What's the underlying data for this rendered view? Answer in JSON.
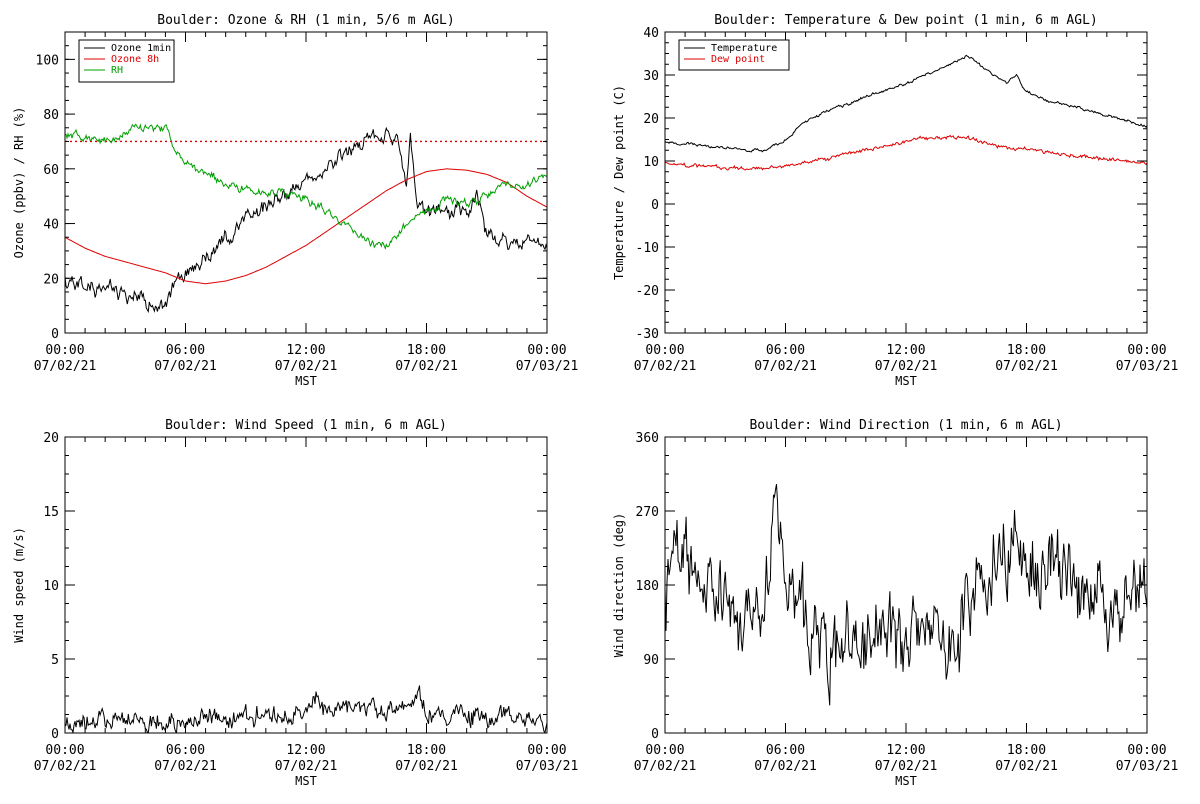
{
  "chart_data": [
    {
      "id": "ozone_rh",
      "type": "line",
      "title": "Boulder: Ozone & RH (1 min, 5/6 m AGL)",
      "xlabel": "MST",
      "ylabel": "Ozone (ppbv) / RH (%)",
      "x_range": [
        "07/02/21 00:00",
        "07/03/21 00:00"
      ],
      "x_ticks": [
        {
          "time": "00:00",
          "date": "07/02/21"
        },
        {
          "time": "06:00",
          "date": "07/02/21"
        },
        {
          "time": "12:00",
          "date": "07/02/21"
        },
        {
          "time": "18:00",
          "date": "07/02/21"
        },
        {
          "time": "00:00",
          "date": "07/03/21"
        }
      ],
      "ylim": [
        0,
        110
      ],
      "y_ticks": [
        0,
        20,
        40,
        60,
        80,
        100
      ],
      "reference_line": {
        "value": 70,
        "color": "#dd0000",
        "style": "dotted"
      },
      "legend": {
        "position": "top-left"
      },
      "series": [
        {
          "name": "Ozone 1min",
          "color": "#000000",
          "noise": 2.5,
          "seed": 11,
          "x_hours": [
            0,
            1,
            2,
            3,
            4,
            5,
            5.5,
            6,
            7,
            8,
            9,
            10,
            11,
            12,
            13,
            14,
            15,
            16,
            16.5,
            17,
            17.2,
            17.5,
            18,
            18.5,
            19,
            20,
            20.5,
            21,
            22,
            23,
            24
          ],
          "values": [
            18,
            17,
            16,
            14,
            11,
            10,
            18,
            22,
            27,
            36,
            42,
            46,
            50,
            54,
            60,
            67,
            70,
            73,
            72,
            56,
            70,
            48,
            44,
            45,
            44,
            45,
            50,
            36,
            32,
            34,
            32
          ]
        },
        {
          "name": "Ozone 8h",
          "color": "#dd0000",
          "noise": 0,
          "seed": 3,
          "x_hours": [
            0,
            1,
            2,
            3,
            4,
            5,
            6,
            7,
            8,
            9,
            10,
            11,
            12,
            13,
            14,
            15,
            16,
            17,
            18,
            19,
            20,
            21,
            22,
            23,
            24
          ],
          "values": [
            35,
            31,
            28,
            26,
            24,
            22,
            19,
            18,
            19,
            21,
            24,
            28,
            32,
            37,
            42,
            47,
            52,
            56,
            59,
            60,
            59.5,
            58,
            55,
            50,
            46
          ]
        },
        {
          "name": "RH",
          "color": "#00a000",
          "noise": 1.4,
          "seed": 7,
          "x_hours": [
            0,
            1,
            2,
            3,
            4,
            5,
            5.5,
            6,
            7,
            8,
            9,
            10,
            11,
            12,
            13,
            14,
            15,
            15.5,
            16,
            17,
            18,
            19,
            20,
            21,
            22,
            23,
            24
          ],
          "values": [
            72,
            71,
            70,
            73,
            75,
            75,
            65,
            62,
            58,
            55,
            52,
            51,
            51,
            49,
            44,
            39,
            35,
            31,
            32,
            40,
            44,
            49,
            47,
            50,
            54,
            54,
            58
          ]
        }
      ]
    },
    {
      "id": "temp_dew",
      "type": "line",
      "title": "Boulder: Temperature & Dew point (1 min, 6 m AGL)",
      "xlabel": "MST",
      "ylabel": "Temperature / Dew point (C)",
      "x_range": [
        "07/02/21 00:00",
        "07/03/21 00:00"
      ],
      "x_ticks": [
        {
          "time": "00:00",
          "date": "07/02/21"
        },
        {
          "time": "06:00",
          "date": "07/02/21"
        },
        {
          "time": "12:00",
          "date": "07/02/21"
        },
        {
          "time": "18:00",
          "date": "07/02/21"
        },
        {
          "time": "00:00",
          "date": "07/03/21"
        }
      ],
      "ylim": [
        -30,
        40
      ],
      "y_ticks": [
        -30,
        -20,
        -10,
        0,
        10,
        20,
        30,
        40
      ],
      "legend": {
        "position": "top-left"
      },
      "series": [
        {
          "name": "Temperature",
          "color": "#000000",
          "noise": 0.3,
          "seed": 5,
          "x_hours": [
            0,
            1,
            2,
            3,
            4,
            5,
            6,
            7,
            8,
            9,
            10,
            11,
            12,
            13,
            14,
            15,
            15.5,
            16,
            17,
            17.5,
            18,
            19,
            20,
            21,
            22,
            23,
            24
          ],
          "values": [
            14.5,
            14,
            13.5,
            13,
            12.5,
            12.5,
            15,
            19,
            21.5,
            23,
            25,
            26.5,
            28,
            30,
            32,
            34.5,
            33,
            31,
            28,
            30,
            26,
            24,
            23,
            22,
            20.5,
            19.5,
            18
          ]
        },
        {
          "name": "Dew point",
          "color": "#dd0000",
          "noise": 0.4,
          "seed": 9,
          "x_hours": [
            0,
            1,
            2,
            3,
            4,
            5,
            6,
            7,
            8,
            9,
            10,
            11,
            12,
            13,
            14,
            15,
            16,
            17,
            18,
            19,
            20,
            21,
            22,
            23,
            24
          ],
          "values": [
            9.5,
            9,
            8.8,
            8.5,
            8.3,
            8.3,
            8.8,
            9.5,
            10.5,
            11.5,
            12.5,
            13.5,
            14.5,
            15.5,
            15.5,
            15.5,
            14,
            13,
            13,
            12,
            11.5,
            11,
            10.5,
            10,
            9.5
          ]
        }
      ]
    },
    {
      "id": "wind_speed",
      "type": "line",
      "title": "Boulder: Wind Speed (1 min, 6 m AGL)",
      "xlabel": "MST",
      "ylabel": "Wind speed (m/s)",
      "x_range": [
        "07/02/21 00:00",
        "07/03/21 00:00"
      ],
      "x_ticks": [
        {
          "time": "00:00",
          "date": "07/02/21"
        },
        {
          "time": "06:00",
          "date": "07/02/21"
        },
        {
          "time": "12:00",
          "date": "07/02/21"
        },
        {
          "time": "18:00",
          "date": "07/02/21"
        },
        {
          "time": "00:00",
          "date": "07/03/21"
        }
      ],
      "ylim": [
        0,
        20
      ],
      "y_ticks": [
        0,
        5,
        10,
        15,
        20
      ],
      "series": [
        {
          "name": "",
          "color": "#000000",
          "noise": 0.6,
          "seed": 13,
          "x_hours": [
            0,
            2,
            4,
            6,
            8,
            10,
            12,
            12.5,
            13,
            14,
            15,
            16,
            17,
            17.5,
            18,
            20,
            22,
            24
          ],
          "values": [
            0.8,
            0.9,
            0.9,
            0.9,
            1.0,
            1.2,
            1.5,
            2.2,
            1.6,
            1.7,
            1.6,
            1.7,
            1.6,
            3.0,
            1.5,
            1.2,
            1.0,
            0.8
          ]
        }
      ]
    },
    {
      "id": "wind_dir",
      "type": "line",
      "title": "Boulder: Wind Direction (1 min, 6 m AGL)",
      "xlabel": "MST",
      "ylabel": "Wind direction (deg)",
      "x_range": [
        "07/02/21 00:00",
        "07/03/21 00:00"
      ],
      "x_ticks": [
        {
          "time": "00:00",
          "date": "07/02/21"
        },
        {
          "time": "06:00",
          "date": "07/02/21"
        },
        {
          "time": "12:00",
          "date": "07/02/21"
        },
        {
          "time": "18:00",
          "date": "07/02/21"
        },
        {
          "time": "00:00",
          "date": "07/03/21"
        }
      ],
      "ylim": [
        0,
        360
      ],
      "y_ticks": [
        0,
        90,
        180,
        270,
        360
      ],
      "series": [
        {
          "name": "",
          "color": "#000000",
          "noise": 40,
          "seed": 17,
          "x_hours": [
            0,
            1,
            2,
            3,
            4,
            5,
            5.5,
            6,
            7,
            8,
            9,
            10,
            11,
            12,
            13,
            14,
            14.5,
            15,
            16,
            17,
            18,
            19,
            20,
            21,
            22,
            23,
            24
          ],
          "values": [
            170,
            210,
            180,
            160,
            150,
            170,
            250,
            190,
            140,
            90,
            110,
            120,
            120,
            110,
            120,
            110,
            100,
            140,
            170,
            230,
            200,
            200,
            190,
            170,
            150,
            160,
            180
          ]
        }
      ]
    }
  ]
}
